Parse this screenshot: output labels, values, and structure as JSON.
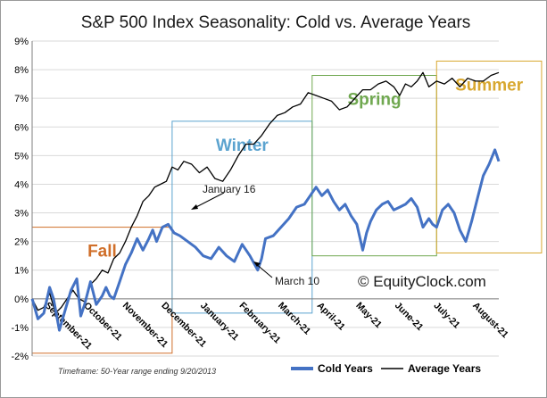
{
  "chart_data": {
    "type": "line",
    "title": "S&P 500 Index Seasonality: Cold vs. Average Years",
    "xlabel": "",
    "ylabel": "",
    "ylim": [
      -2,
      9
    ],
    "xlim": [
      0,
      12
    ],
    "y_ticks": [
      "-2%",
      "-1%",
      "0%",
      "1%",
      "2%",
      "3%",
      "4%",
      "5%",
      "6%",
      "7%",
      "8%",
      "9%"
    ],
    "categories": [
      "September-21",
      "October-21",
      "November-21",
      "December-21",
      "January-21",
      "February-21",
      "March-21",
      "April-21",
      "May-21",
      "June-21",
      "July-21",
      "August-21"
    ],
    "grid": true,
    "legend_position": "bottom-right",
    "series": [
      {
        "name": "Cold Years",
        "color": "#4472c4",
        "x": [
          0,
          0.15,
          0.3,
          0.45,
          0.55,
          0.7,
          0.85,
          1.0,
          1.15,
          1.25,
          1.35,
          1.5,
          1.65,
          1.8,
          1.9,
          2.0,
          2.1,
          2.25,
          2.4,
          2.55,
          2.7,
          2.85,
          3.0,
          3.1,
          3.2,
          3.35,
          3.5,
          3.65,
          3.8,
          4.0,
          4.2,
          4.4,
          4.6,
          4.8,
          5.0,
          5.2,
          5.4,
          5.6,
          5.8,
          5.9,
          6.0,
          6.2,
          6.4,
          6.6,
          6.8,
          7.0,
          7.15,
          7.3,
          7.45,
          7.6,
          7.75,
          7.9,
          8.05,
          8.2,
          8.35,
          8.5,
          8.6,
          8.7,
          8.85,
          9.0,
          9.15,
          9.3,
          9.45,
          9.6,
          9.75,
          9.9,
          10.05,
          10.2,
          10.3,
          10.4,
          10.55,
          10.7,
          10.85,
          11.0,
          11.15,
          11.3,
          11.45,
          11.6,
          11.75,
          11.9,
          12.0
        ],
        "values": [
          0.0,
          -0.7,
          -0.5,
          0.4,
          0.0,
          -1.1,
          -0.4,
          0.3,
          0.7,
          -0.6,
          -0.2,
          0.6,
          -0.2,
          0.1,
          0.4,
          0.1,
          0.0,
          0.6,
          1.2,
          1.6,
          2.1,
          1.7,
          2.1,
          2.4,
          2.0,
          2.5,
          2.6,
          2.3,
          2.2,
          2.0,
          1.8,
          1.5,
          1.4,
          1.8,
          1.5,
          1.3,
          1.9,
          1.5,
          1.0,
          1.4,
          2.1,
          2.2,
          2.5,
          2.8,
          3.2,
          3.3,
          3.6,
          3.9,
          3.6,
          3.8,
          3.4,
          3.1,
          3.3,
          2.9,
          2.6,
          1.7,
          2.3,
          2.7,
          3.1,
          3.3,
          3.4,
          3.1,
          3.2,
          3.3,
          3.5,
          3.2,
          2.5,
          2.8,
          2.6,
          2.5,
          3.1,
          3.3,
          3.0,
          2.4,
          2.0,
          2.7,
          3.5,
          4.3,
          4.7,
          5.2,
          4.8
        ]
      },
      {
        "name": "Average Years",
        "color": "#000000",
        "x": [
          0,
          0.15,
          0.3,
          0.45,
          0.6,
          0.75,
          0.9,
          1.05,
          1.2,
          1.35,
          1.5,
          1.65,
          1.8,
          1.95,
          2.1,
          2.25,
          2.4,
          2.55,
          2.7,
          2.85,
          3.0,
          3.15,
          3.3,
          3.45,
          3.6,
          3.75,
          3.9,
          4.1,
          4.3,
          4.5,
          4.7,
          4.9,
          5.1,
          5.3,
          5.5,
          5.7,
          5.9,
          6.1,
          6.3,
          6.5,
          6.7,
          6.9,
          7.1,
          7.3,
          7.5,
          7.7,
          7.9,
          8.1,
          8.3,
          8.5,
          8.7,
          8.9,
          9.1,
          9.3,
          9.45,
          9.6,
          9.75,
          9.9,
          10.05,
          10.2,
          10.4,
          10.6,
          10.8,
          11.0,
          11.2,
          11.4,
          11.6,
          11.8,
          12.0
        ],
        "values": [
          0.0,
          -0.4,
          -0.3,
          0.2,
          -0.5,
          -0.3,
          0.0,
          0.3,
          0.0,
          -0.1,
          0.5,
          0.7,
          1.0,
          0.9,
          1.4,
          1.6,
          2.0,
          2.5,
          2.9,
          3.4,
          3.6,
          3.9,
          4.0,
          4.1,
          4.6,
          4.5,
          4.8,
          4.7,
          4.4,
          4.6,
          4.2,
          4.1,
          4.5,
          5.0,
          5.4,
          5.4,
          5.7,
          6.1,
          6.4,
          6.5,
          6.7,
          6.8,
          7.2,
          7.1,
          7.0,
          6.9,
          6.6,
          6.7,
          7.0,
          7.3,
          7.3,
          7.5,
          7.6,
          7.4,
          7.1,
          7.5,
          7.4,
          7.6,
          7.9,
          7.4,
          7.6,
          7.5,
          7.7,
          7.4,
          7.7,
          7.6,
          7.6,
          7.8,
          7.9
        ]
      }
    ],
    "regions": [
      {
        "name": "Fall",
        "color": "#d06f2a",
        "x0": 0,
        "x1": 3.6,
        "y0": -1.9,
        "y1": 2.5
      },
      {
        "name": "Winter",
        "color": "#5ba3cf",
        "x0": 3.6,
        "x1": 7.2,
        "y0": -0.5,
        "y1": 6.2
      },
      {
        "name": "Spring",
        "color": "#70a850",
        "x0": 7.2,
        "x1": 10.4,
        "y0": 1.5,
        "y1": 7.8
      },
      {
        "name": "Summer",
        "color": "#d8a830",
        "x0": 10.4,
        "x1": 13.1,
        "y0": 1.6,
        "y1": 8.3
      }
    ],
    "annotations": [
      {
        "text": "January 16",
        "x": 4.9,
        "y": 3.0
      },
      {
        "text": "March 10",
        "x": 7.6,
        "y": 0.4
      }
    ],
    "watermark": "© EquityClock.com",
    "footnote": "Timeframe: 50-Year range ending 9/20/2013"
  }
}
